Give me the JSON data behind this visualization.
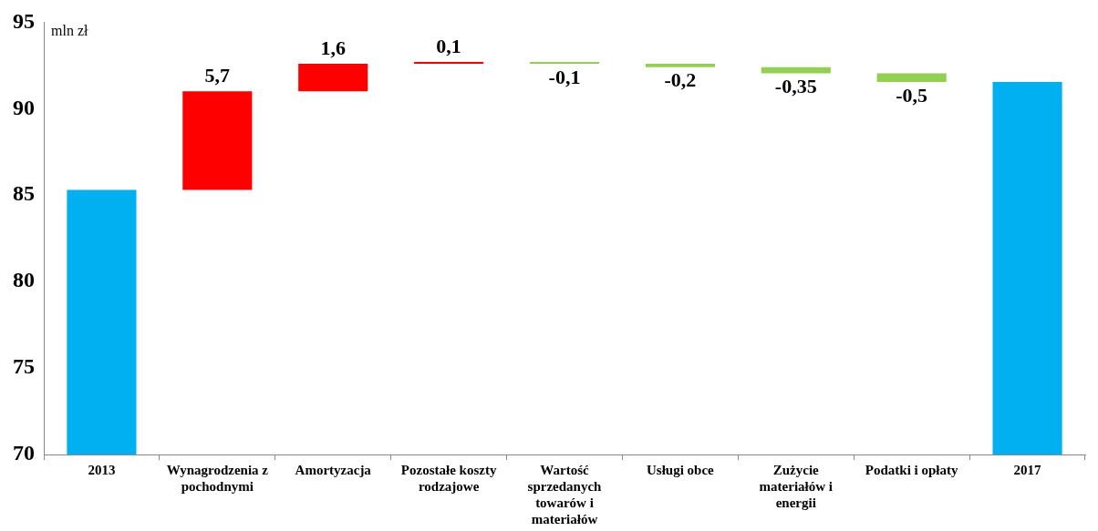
{
  "chart_data": {
    "type": "bar",
    "ylabel": "mln zł",
    "categories": [
      "2013",
      "Wynagrodzenia z pochodnymi",
      "Amortyzacja",
      "Pozostałe koszty rodzajowe",
      "Wartość sprzedanych towarów i materiałów",
      "Usługi obce",
      "Zużycie materiałów i energii",
      "Podatki i opłaty",
      "2017"
    ],
    "base": [
      70,
      85.3,
      91.0,
      92.6,
      92.7,
      92.6,
      92.4,
      92.05,
      70
    ],
    "values": [
      15.3,
      5.7,
      1.6,
      0.1,
      -0.1,
      -0.2,
      -0.35,
      -0.5,
      21.55
    ],
    "colors": [
      "#00b0f0",
      "#ff0000",
      "#ff0000",
      "#ff0000",
      "#92d050",
      "#92d050",
      "#92d050",
      "#92d050",
      "#00b0f0"
    ],
    "value_labels": [
      null,
      "5,7",
      "1,6",
      "0,1",
      "-0,1",
      "-0,2",
      "-0,35",
      "-0,5",
      null
    ],
    "ylim": [
      70,
      95
    ],
    "yticks": [
      70,
      75,
      80,
      85,
      90,
      95
    ],
    "grid": false,
    "legend": false
  }
}
